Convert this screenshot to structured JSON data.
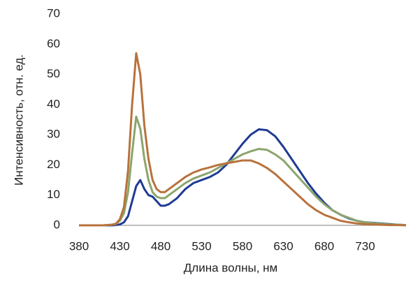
{
  "chart_data": {
    "type": "line",
    "x_label": "Длина волны, нм",
    "y_label": "Интенсивность, отн. ед.",
    "x": [
      380,
      390,
      400,
      410,
      420,
      425,
      430,
      435,
      440,
      445,
      450,
      455,
      460,
      465,
      470,
      475,
      480,
      485,
      490,
      500,
      510,
      520,
      530,
      540,
      550,
      560,
      570,
      580,
      590,
      600,
      610,
      620,
      630,
      640,
      650,
      660,
      670,
      680,
      690,
      700,
      710,
      720,
      730,
      740,
      750,
      760,
      770,
      780
    ],
    "series": [
      {
        "color": "#1f3a93",
        "values": [
          0,
          0,
          0,
          0,
          0,
          0.1,
          0.3,
          1,
          3,
          8,
          13,
          15,
          12,
          10,
          9.5,
          8,
          6.5,
          6.5,
          7,
          9,
          12,
          14,
          15,
          16,
          17.5,
          20,
          23.5,
          27,
          30,
          31.8,
          31.5,
          29.5,
          26,
          22,
          18,
          14,
          10.5,
          7.5,
          5,
          3.5,
          2.3,
          1.5,
          1,
          0.8,
          0.6,
          0.4,
          0.2,
          0.1
        ]
      },
      {
        "color": "#8ba56c",
        "values": [
          0,
          0,
          0,
          0,
          0.2,
          0.4,
          1.5,
          4,
          11,
          24,
          36,
          32,
          22,
          15,
          11,
          9.5,
          9,
          9,
          10,
          12,
          14,
          15.5,
          16.5,
          17.5,
          19,
          20.5,
          22,
          23.5,
          24.5,
          25.3,
          25,
          23.5,
          21.5,
          18.5,
          15.5,
          12.5,
          9.5,
          7,
          5,
          3.5,
          2.5,
          1.5,
          1,
          0.7,
          0.5,
          0.3,
          0.2,
          0.1
        ]
      },
      {
        "color": "#b8723c",
        "values": [
          0,
          0,
          0,
          0,
          0.2,
          0.5,
          2,
          6,
          18,
          40,
          57,
          50,
          33,
          22,
          15,
          12,
          11,
          11,
          12,
          14,
          16,
          17.5,
          18.5,
          19.2,
          20,
          20.5,
          21,
          21.5,
          21.5,
          20.5,
          19,
          17,
          14.5,
          12,
          9.5,
          7,
          5,
          3.5,
          2.5,
          1.5,
          1,
          0.6,
          0.4,
          0.3,
          0.2,
          0.1,
          0.1,
          0
        ]
      }
    ],
    "xlim": [
      380,
      780
    ],
    "xticks": [
      380,
      430,
      480,
      530,
      580,
      630,
      680,
      730
    ],
    "ylim": [
      0,
      70
    ],
    "yticks": [
      0,
      10,
      20,
      30,
      40,
      50,
      60,
      70
    ]
  }
}
